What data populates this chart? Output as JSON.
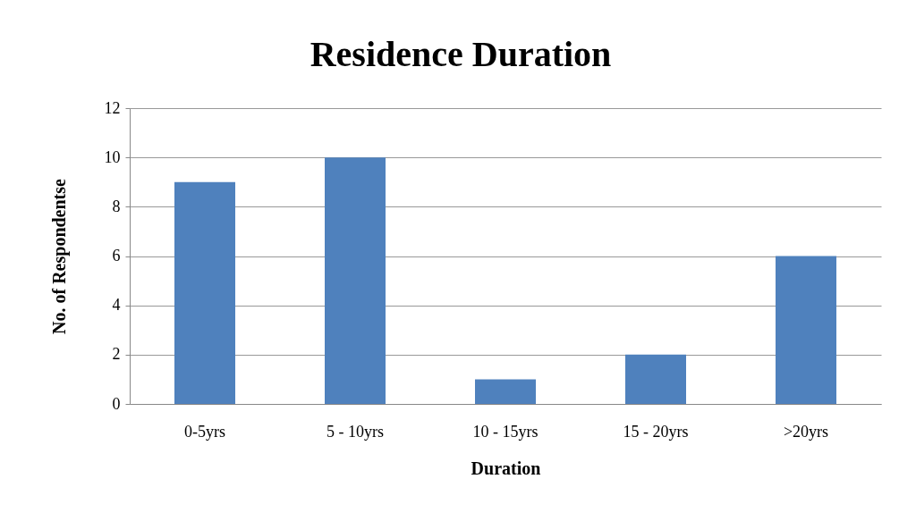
{
  "chart_data": {
    "type": "bar",
    "title": "Residence Duration",
    "xlabel": "Duration",
    "ylabel": "No. of Respondentse",
    "categories": [
      "0-5yrs",
      "5 - 10yrs",
      "10 - 15yrs",
      "15 - 20yrs",
      ">20yrs"
    ],
    "values": [
      9,
      10,
      1,
      2,
      6
    ],
    "color": "#4f81bd",
    "ylim": [
      0,
      12
    ],
    "yticks": [
      0,
      2,
      4,
      6,
      8,
      10,
      12
    ],
    "grid": "y"
  }
}
